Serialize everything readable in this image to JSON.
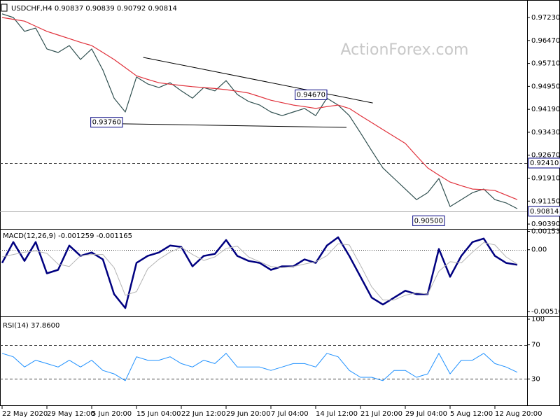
{
  "chart_data": [
    {
      "type": "line",
      "title": "USDCHF,H4 0.90837 0.90839 0.90792 0.90814",
      "watermark": "ActionForex.com",
      "categories": [
        "22 May 2020",
        null,
        null,
        null,
        "29 May 12:00",
        null,
        null,
        null,
        "5 Jun 20:00",
        null,
        null,
        null,
        "15 Jun 04:00",
        null,
        null,
        null,
        "22 Jun 12:00",
        null,
        null,
        null,
        "29 Jun 20:00",
        null,
        null,
        null,
        "7 Jul 04:00",
        null,
        null,
        null,
        "14 Jul 12:00",
        null,
        null,
        null,
        "21 Jul 20:00",
        null,
        null,
        null,
        "29 Jul 04:00",
        null,
        null,
        null,
        "5 Aug 12:00",
        null,
        null,
        null,
        "12 Aug 20:00",
        null,
        null
      ],
      "series": [
        {
          "color": "#2f4f4f",
          "values": [
            0.9735,
            0.9723,
            0.9677,
            0.9688,
            0.9619,
            0.9607,
            0.963,
            0.9584,
            0.9619,
            0.9549,
            0.9456,
            0.941,
            0.9526,
            0.9503,
            0.9491,
            0.9507,
            0.948,
            0.9456,
            0.9491,
            0.948,
            0.9514,
            0.9468,
            0.9445,
            0.9433,
            0.941,
            0.9398,
            0.941,
            0.9422,
            0.9398,
            0.9456,
            0.9433,
            0.9398,
            0.9341,
            0.9282,
            0.9225,
            0.919,
            0.9155,
            0.912,
            0.9143,
            0.919,
            0.9097,
            0.912,
            0.9143,
            0.9155,
            0.912,
            0.9109,
            0.909
          ]
        },
        {
          "color": "#e0303a",
          "values": [
            0.9723,
            0.9717,
            0.9711,
            0.9694,
            0.9677,
            0.9665,
            0.9653,
            0.9641,
            0.963,
            0.9607,
            0.9584,
            0.9557,
            0.953,
            0.9518,
            0.9507,
            0.9502,
            0.9498,
            0.9494,
            0.9491,
            0.9488,
            0.9484,
            0.9479,
            0.9473,
            0.9461,
            0.9449,
            0.9441,
            0.9433,
            0.9428,
            0.9422,
            0.9428,
            0.9433,
            0.9422,
            0.9398,
            0.9375,
            0.9352,
            0.9329,
            0.9306,
            0.9265,
            0.9225,
            0.9201,
            0.9178,
            0.9166,
            0.9155,
            0.9153,
            0.915,
            0.9135,
            0.912
          ]
        }
      ],
      "ylim": [
        0.9023,
        0.9774
      ],
      "yticks": [
        {
          "value": 0.9723,
          "label": "0.97230"
        },
        {
          "value": 0.9647,
          "label": "0.96470"
        },
        {
          "value": 0.9571,
          "label": "0.95710"
        },
        {
          "value": 0.9495,
          "label": "0.94950"
        },
        {
          "value": 0.9419,
          "label": "0.94190"
        },
        {
          "value": 0.9343,
          "label": "0.93430"
        },
        {
          "value": 0.9267,
          "label": "0.92670"
        },
        {
          "value": 0.9191,
          "label": "0.91910"
        },
        {
          "value": 0.9115,
          "label": "0.91150"
        },
        {
          "value": 0.9039,
          "label": "0.90390"
        }
      ],
      "levels": [
        {
          "value": 0.9241,
          "label": "0.92410",
          "style": "dashed"
        },
        {
          "value": 0.90814,
          "label": "0.90814",
          "style": "solid"
        }
      ],
      "trendlines": [
        {
          "x": [
            12.6,
            33.1
          ],
          "values": [
            0.9591,
            0.944
          ]
        },
        {
          "x": [
            10.75,
            30.75
          ],
          "values": [
            0.9371,
            0.9359
          ]
        }
      ],
      "annotations": [
        {
          "x": 10.75,
          "value": 0.9376,
          "label": "0.93760"
        },
        {
          "x": 29,
          "value": 0.9467,
          "label": "0.94670"
        },
        {
          "x": 39.5,
          "value": 0.905,
          "label": "0.90500"
        }
      ]
    },
    {
      "type": "line",
      "title": "MACD(12,26,9) -0.001259 -0.001165",
      "series": [
        {
          "color": "#000080",
          "width": 2.5,
          "values": [
            -0.0011,
            0.00064,
            -0.00093,
            0.00064,
            -0.00197,
            -0.00168,
            0.00035,
            -0.00052,
            -0.00023,
            -0.00081,
            -0.00371,
            -0.00487,
            -0.0011,
            -0.00052,
            -0.00023,
            0.00035,
            0.00023,
            -0.00139,
            -0.00052,
            -0.00035,
            0.00081,
            -0.00052,
            -0.00093,
            -0.0011,
            -0.00168,
            -0.00139,
            -0.00139,
            -0.00081,
            -0.0011,
            0.00035,
            0.00104,
            -0.00052,
            -0.00226,
            -0.004,
            -0.00458,
            -0.004,
            -0.00342,
            -0.00371,
            -0.00371,
            6e-05,
            -0.00226,
            -0.00052,
            0.00064,
            0.00093,
            -0.00052,
            -0.0011,
            -0.00126
          ]
        },
        {
          "color": "#b4b4b4",
          "width": 1,
          "values": [
            -0.0006,
            -0.0004,
            -0.0002,
            -0.0001,
            -0.0003,
            -0.0012,
            -0.0014,
            -0.0005,
            -0.0004,
            -0.0004,
            -0.0015,
            -0.0038,
            -0.0035,
            -0.0016,
            -0.0008,
            -0.0002,
            0.0002,
            -0.0004,
            -0.0009,
            -0.0006,
            0.0001,
            0.0003,
            -0.0006,
            -0.001,
            -0.0014,
            -0.0015,
            -0.0014,
            -0.0012,
            -0.001,
            -0.0005,
            0.0005,
            0.0004,
            -0.0013,
            -0.0031,
            -0.0042,
            -0.0042,
            -0.0038,
            -0.0036,
            -0.0037,
            -0.0018,
            -0.001,
            -0.0011,
            -0.0002,
            0.0006,
            0.0004,
            -0.0006,
            -0.0012
          ]
        }
      ],
      "ylim": [
        -0.00545,
        0.00168
      ],
      "yticks": [
        0.001532,
        {
          "value": 0,
          "label": "0.00"
        },
        -0.005164
      ],
      "levels": [
        {
          "value": 0,
          "style": "dotted"
        }
      ]
    },
    {
      "type": "line",
      "title": "RSI(14) 37.8600",
      "series": [
        {
          "color": "#1e90ff",
          "width": 1,
          "values": [
            60,
            56,
            44,
            52,
            48,
            44,
            52,
            44,
            52,
            40,
            36,
            28,
            56,
            52,
            52,
            56,
            48,
            44,
            52,
            48,
            60,
            44,
            44,
            44,
            40,
            44,
            48,
            48,
            44,
            60,
            56,
            40,
            32,
            32,
            28,
            40,
            40,
            32,
            36,
            60,
            36,
            52,
            52,
            60,
            48,
            44,
            37.86
          ]
        }
      ],
      "ylim": [
        0,
        100
      ],
      "yticks": [
        100,
        70,
        30
      ],
      "levels": [
        {
          "value": 70,
          "style": "dashed"
        },
        {
          "value": 30,
          "style": "dashed"
        }
      ]
    }
  ]
}
